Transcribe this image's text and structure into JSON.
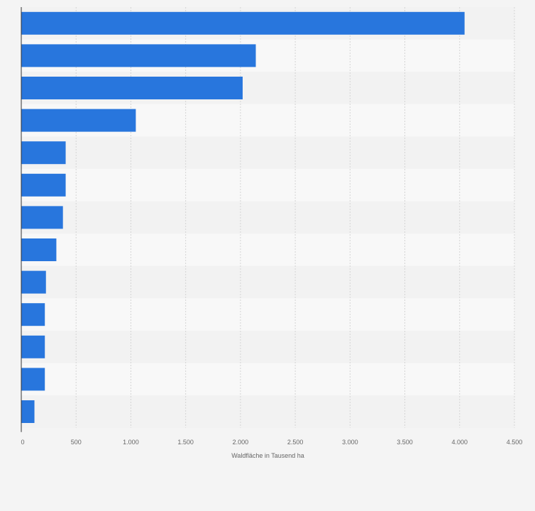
{
  "colors": {
    "bar": "#2876dd",
    "band_dark": "#f2f2f2",
    "band_light": "#f8f8f8",
    "grid": "#d4d4d4",
    "axis": "#333333",
    "text": "#666666",
    "background": "#f4f4f4"
  },
  "chart_data": {
    "type": "bar",
    "orientation": "horizontal",
    "xlabel": "Waldfläche in Tausend ha",
    "xlim": [
      0,
      4500
    ],
    "ticks": [
      0,
      500,
      1000,
      1500,
      2000,
      2500,
      3000,
      3500,
      4000,
      4500
    ],
    "tick_labels": [
      "0",
      "500",
      "1.000",
      "1.500",
      "2.000",
      "2.500",
      "3.000",
      "3.500",
      "4.000",
      "4.500"
    ],
    "grid": true,
    "values": [
      4045,
      2140,
      2020,
      1045,
      405,
      405,
      380,
      320,
      225,
      215,
      215,
      215,
      120
    ]
  }
}
